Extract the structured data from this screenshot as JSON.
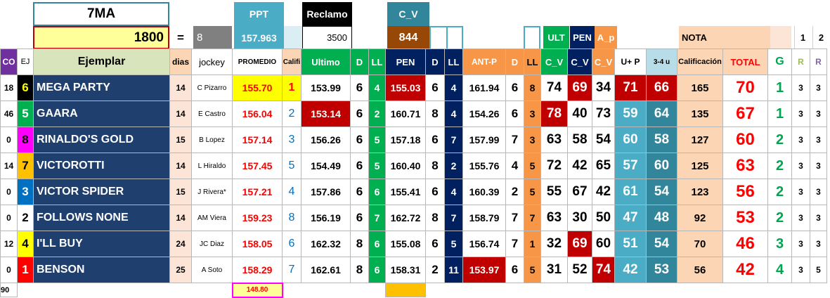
{
  "race": "7MA",
  "purse": "1800",
  "equals": "=",
  "top_cells": {
    "eight": "8",
    "ppt_value": "157.963",
    "reclamo_value": "3500",
    "cv_value": "844"
  },
  "top_labels": {
    "ppt": "PPT",
    "reclamo": "Reclamo",
    "cv": "C_V",
    "ult": "ULT",
    "pen": "PEN",
    "ap": "A_p",
    "nota": "NOTA",
    "one": "1",
    "two": "2"
  },
  "headers": [
    "CO",
    "EJ",
    "Ejemplar",
    "dias",
    "jockey",
    "PROMEDIO",
    "Califi",
    "Ultimo",
    "D",
    "LL",
    "PEN",
    "D",
    "LL",
    "ANT-P",
    "D",
    "LL",
    "C_V",
    "C_V",
    "C_V",
    "U+ P",
    "3-4 u",
    "Calificación",
    "TOTAL",
    "G",
    "R",
    "R"
  ],
  "rows": [
    {
      "co": "18",
      "ej": "6",
      "name": "MEGA PARTY",
      "dias": "14",
      "jockey": "C Pizarro",
      "prom": "155.70",
      "cal": "1",
      "ult": "153.99",
      "d1": "6",
      "ll1": "4",
      "pen": "155.03",
      "d2": "6",
      "ll2": "4",
      "ant": "161.94",
      "d3": "6",
      "ll3": "8",
      "cv1": "74",
      "cv2": "69",
      "cv3": "34",
      "up": "71",
      "u34": "66",
      "calif": "165",
      "total": "70",
      "g": "1",
      "r1": "3",
      "r2": "3"
    },
    {
      "co": "46",
      "ej": "5",
      "name": "GAARA",
      "dias": "14",
      "jockey": "E Castro",
      "prom": "156.04",
      "cal": "2",
      "ult": "153.14",
      "d1": "6",
      "ll1": "2",
      "pen": "160.71",
      "d2": "8",
      "ll2": "4",
      "ant": "154.26",
      "d3": "6",
      "ll3": "3",
      "cv1": "78",
      "cv2": "40",
      "cv3": "73",
      "up": "59",
      "u34": "64",
      "calif": "135",
      "total": "67",
      "g": "1",
      "r1": "3",
      "r2": "3"
    },
    {
      "co": "0",
      "ej": "8",
      "name": "RINALDO'S GOLD",
      "dias": "15",
      "jockey": "B Lopez",
      "prom": "157.14",
      "cal": "3",
      "ult": "156.26",
      "d1": "6",
      "ll1": "5",
      "pen": "157.18",
      "d2": "6",
      "ll2": "7",
      "ant": "157.99",
      "d3": "7",
      "ll3": "3",
      "cv1": "63",
      "cv2": "58",
      "cv3": "54",
      "up": "60",
      "u34": "58",
      "calif": "127",
      "total": "60",
      "g": "2",
      "r1": "3",
      "r2": "3"
    },
    {
      "co": "14",
      "ej": "7",
      "name": "VICTOROTTI",
      "dias": "14",
      "jockey": "L Hiraldo",
      "prom": "157.45",
      "cal": "5",
      "ult": "154.49",
      "d1": "6",
      "ll1": "5",
      "pen": "160.40",
      "d2": "8",
      "ll2": "2",
      "ant": "155.76",
      "d3": "4",
      "ll3": "5",
      "cv1": "72",
      "cv2": "42",
      "cv3": "65",
      "up": "57",
      "u34": "60",
      "calif": "125",
      "total": "63",
      "g": "2",
      "r1": "3",
      "r2": "3"
    },
    {
      "co": "0",
      "ej": "3",
      "name": "VICTOR SPIDER",
      "dias": "15",
      "jockey": "J Rivera*",
      "prom": "157.21",
      "cal": "4",
      "ult": "157.86",
      "d1": "6",
      "ll1": "6",
      "pen": "155.41",
      "d2": "6",
      "ll2": "4",
      "ant": "160.39",
      "d3": "2",
      "ll3": "5",
      "cv1": "55",
      "cv2": "67",
      "cv3": "42",
      "up": "61",
      "u34": "54",
      "calif": "123",
      "total": "56",
      "g": "2",
      "r1": "3",
      "r2": "3"
    },
    {
      "co": "0",
      "ej": "2",
      "name": "FOLLOWS NONE",
      "dias": "14",
      "jockey": "AM Viera",
      "prom": "159.23",
      "cal": "8",
      "ult": "156.19",
      "d1": "6",
      "ll1": "7",
      "pen": "162.72",
      "d2": "8",
      "ll2": "7",
      "ant": "158.79",
      "d3": "7",
      "ll3": "7",
      "cv1": "63",
      "cv2": "30",
      "cv3": "50",
      "up": "47",
      "u34": "48",
      "calif": "92",
      "total": "53",
      "g": "2",
      "r1": "3",
      "r2": "3"
    },
    {
      "co": "12",
      "ej": "4",
      "name": "I'LL BUY",
      "dias": "24",
      "jockey": "JC Diaz",
      "prom": "158.05",
      "cal": "6",
      "ult": "162.32",
      "d1": "8",
      "ll1": "6",
      "pen": "155.08",
      "d2": "6",
      "ll2": "5",
      "ant": "156.74",
      "d3": "7",
      "ll3": "1",
      "cv1": "32",
      "cv2": "69",
      "cv3": "60",
      "up": "51",
      "u34": "54",
      "calif": "70",
      "total": "46",
      "g": "3",
      "r1": "3",
      "r2": "3"
    },
    {
      "co": "0",
      "ej": "1",
      "name": "BENSON",
      "dias": "25",
      "jockey": "A Soto",
      "prom": "158.29",
      "cal": "7",
      "ult": "162.61",
      "d1": "8",
      "ll1": "6",
      "pen": "158.31",
      "d2": "2",
      "ll2": "11",
      "ant": "153.97",
      "d3": "6",
      "ll3": "5",
      "cv1": "31",
      "cv2": "52",
      "cv3": "74",
      "up": "42",
      "u34": "53",
      "calif": "56",
      "total": "42",
      "g": "4",
      "r1": "3",
      "r2": "5"
    }
  ],
  "footer": {
    "co": "90",
    "prom": "148.80"
  },
  "colors": {
    "navy": "#1f3f6e",
    "dark_navy": "#002060",
    "green": "#00b050",
    "dark_red": "#c00000",
    "teal": "#31869b",
    "light_blue": "#4bacc6",
    "orange_soft": "#fcd5b4",
    "orange": "#f79646",
    "yellow": "#ffff00",
    "pink_light": "#fce4d6",
    "purple_btn": "#7030a0"
  }
}
